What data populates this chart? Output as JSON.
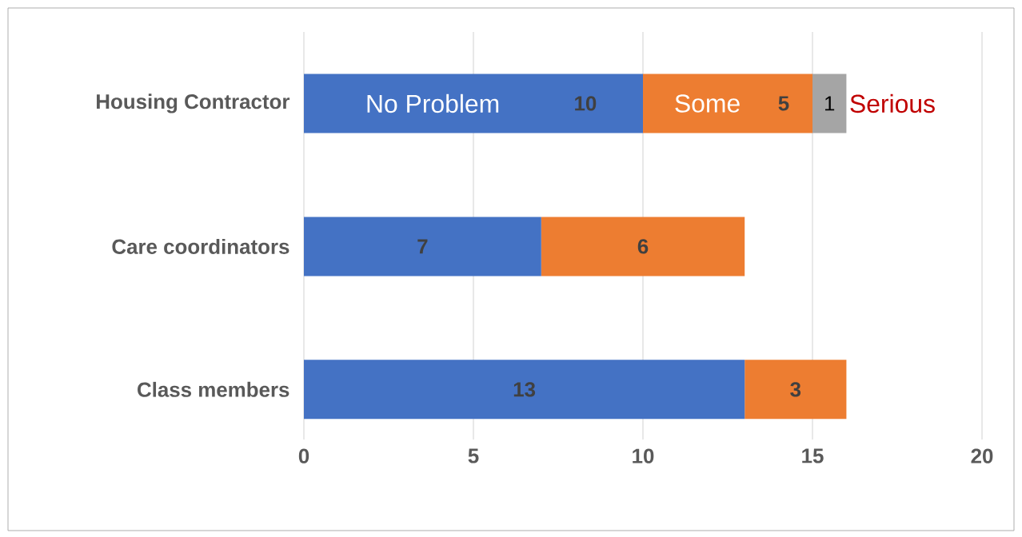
{
  "chart_data": {
    "type": "bar",
    "orientation": "horizontal",
    "stacked": true,
    "categories": [
      "Housing Contractor",
      "Care coordinators",
      "Class members"
    ],
    "series": [
      {
        "name": "No Problem",
        "color": "#4472c4",
        "values": [
          10,
          7,
          13
        ]
      },
      {
        "name": "Some",
        "color": "#ed7d31",
        "values": [
          5,
          6,
          3
        ]
      },
      {
        "name": "Serious",
        "color": "#a5a5a5",
        "values": [
          1,
          null,
          null
        ]
      }
    ],
    "xlim": [
      0,
      20
    ],
    "xticks": [
      0,
      5,
      10,
      15,
      20
    ],
    "grid": "x",
    "data_labels": true
  }
}
